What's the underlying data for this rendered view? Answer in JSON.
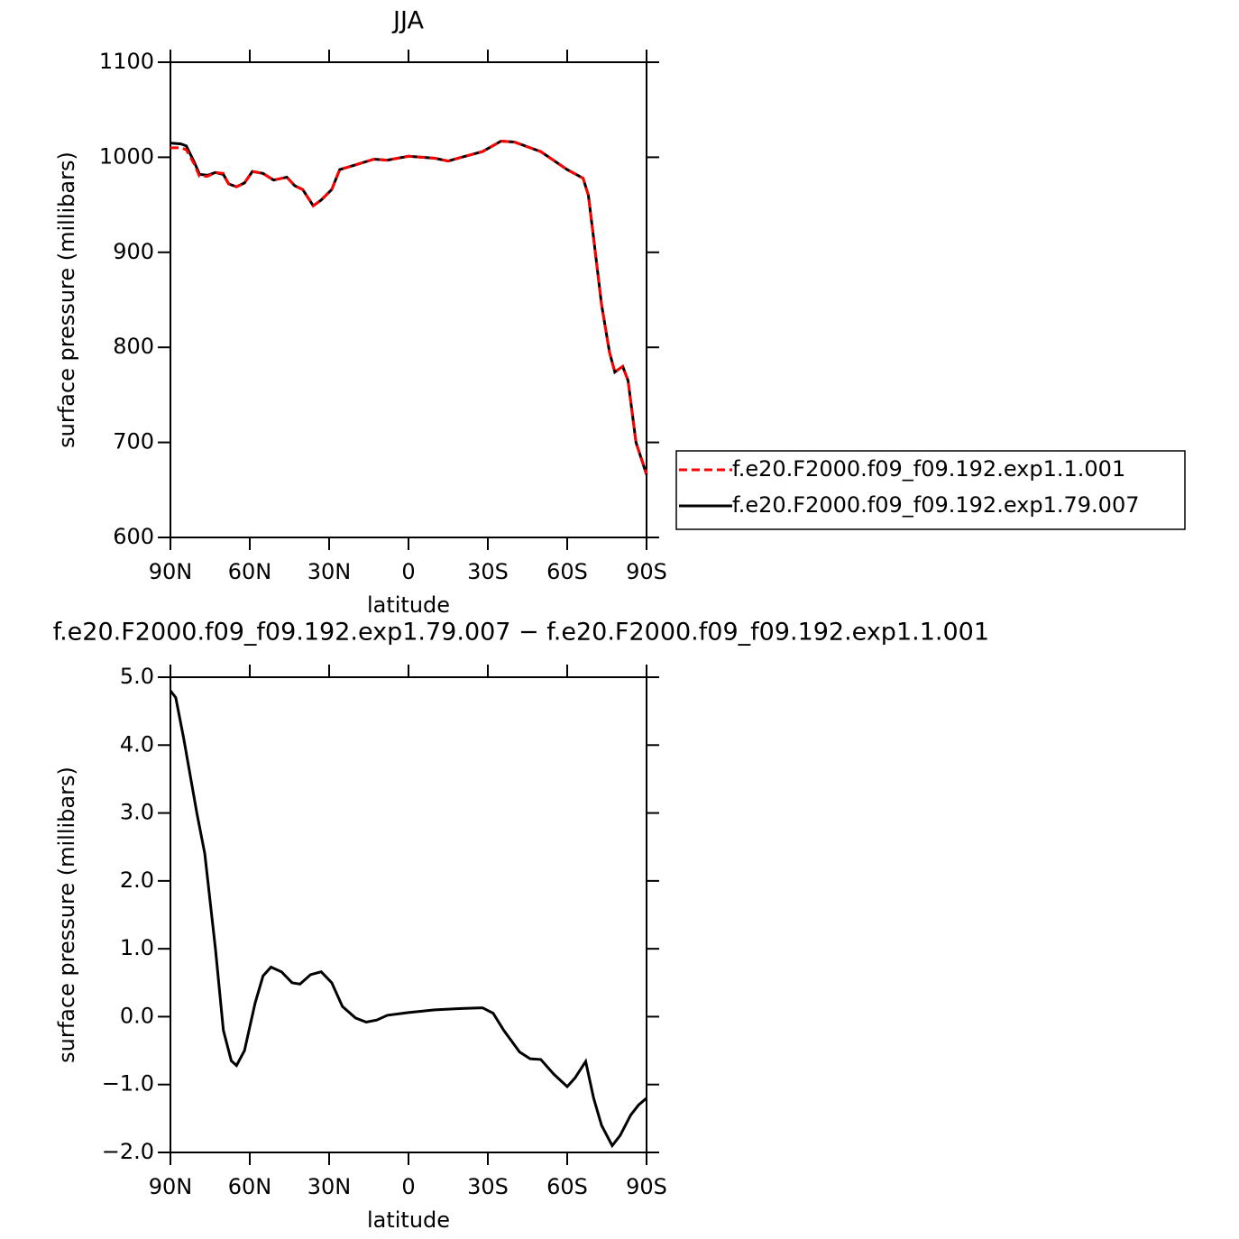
{
  "chart_data": [
    {
      "type": "line",
      "title": "JJA",
      "x_label": "latitude",
      "y_label": "surface pressure (millibars)",
      "x": [
        90,
        86,
        84,
        81,
        79,
        76,
        73,
        70,
        68,
        65,
        62,
        59,
        55,
        51,
        46,
        43,
        40,
        36,
        33,
        29,
        26,
        20,
        13,
        8,
        0,
        -10,
        -15,
        -20,
        -28,
        -35,
        -40,
        -50,
        -60,
        -66,
        -68,
        -70,
        -73,
        -76,
        -78,
        -81,
        -83,
        -86,
        -90
      ],
      "series": [
        {
          "name": "f.e20.F2000.f09_f09.192.exp1.1.001",
          "color": "#ff0000",
          "line_style": "dashed",
          "values": [
            1010,
            1010,
            1008,
            993,
            980,
            980,
            984,
            983,
            972,
            969,
            973,
            985,
            983,
            976,
            979,
            970,
            966,
            949,
            955,
            966,
            987,
            992,
            998,
            997,
            1001,
            999,
            996,
            1000,
            1006,
            1017,
            1016,
            1006,
            987,
            978,
            960,
            915,
            845,
            795,
            774,
            780,
            765,
            700,
            667
          ]
        },
        {
          "name": "f.e20.F2000.f09_f09.192.exp1.79.007",
          "color": "#000000",
          "line_style": "solid",
          "values": [
            1015,
            1014,
            1012,
            995,
            982,
            981,
            984,
            982,
            972,
            969,
            973,
            985,
            983,
            976,
            979,
            970,
            966,
            949,
            955,
            966,
            987,
            992,
            998,
            997,
            1001,
            999,
            996,
            1000,
            1006,
            1017,
            1016,
            1006,
            987,
            978,
            960,
            915,
            845,
            795,
            774,
            780,
            765,
            700,
            666
          ]
        }
      ],
      "xlim": [
        90,
        -90
      ],
      "ylim": [
        600,
        1100
      ],
      "xticks": [
        {
          "value": 90,
          "label": "90N"
        },
        {
          "value": 60,
          "label": "60N"
        },
        {
          "value": 30,
          "label": "30N"
        },
        0,
        {
          "value": -30,
          "label": "30S"
        },
        {
          "value": -60,
          "label": "60S"
        },
        {
          "value": -90,
          "label": "90S"
        }
      ],
      "yticks": [
        600,
        700,
        800,
        900,
        1000,
        1100
      ],
      "legend": "right"
    },
    {
      "type": "line",
      "title": "f.e20.F2000.f09_f09.192.exp1.79.007 − f.e20.F2000.f09_f09.192.exp1.1.001",
      "x_label": "latitude",
      "y_label": "surface pressure (millibars)",
      "x": [
        90,
        88,
        85,
        80,
        77,
        73,
        70,
        67,
        65,
        62,
        58,
        55,
        52,
        48,
        44,
        41,
        37,
        33,
        29,
        25,
        20,
        16,
        12,
        8,
        0,
        -10,
        -20,
        -28,
        -32,
        -36,
        -42,
        -46,
        -50,
        -55,
        -60,
        -63,
        -67,
        -70,
        -73,
        -77,
        -80,
        -84,
        -87,
        -90
      ],
      "values": [
        4.8,
        4.7,
        4.1,
        3.0,
        2.4,
        1.0,
        -0.2,
        -0.65,
        -0.72,
        -0.5,
        0.2,
        0.6,
        0.73,
        0.66,
        0.5,
        0.48,
        0.62,
        0.66,
        0.5,
        0.15,
        -0.02,
        -0.08,
        -0.05,
        0.02,
        0.06,
        0.1,
        0.12,
        0.13,
        0.05,
        -0.2,
        -0.52,
        -0.62,
        -0.63,
        -0.85,
        -1.03,
        -0.9,
        -0.66,
        -1.2,
        -1.6,
        -1.9,
        -1.75,
        -1.45,
        -1.3,
        -1.2
      ],
      "color": "#000000",
      "xlim": [
        90,
        -90
      ],
      "ylim": [
        -2,
        5
      ],
      "xticks": [
        {
          "value": 90,
          "label": "90N"
        },
        {
          "value": 60,
          "label": "60N"
        },
        {
          "value": 30,
          "label": "30N"
        },
        0,
        {
          "value": -30,
          "label": "30S"
        },
        {
          "value": -60,
          "label": "60S"
        },
        {
          "value": -90,
          "label": "90S"
        }
      ],
      "yticks": [
        {
          "value": -2,
          "label": "−2.0"
        },
        {
          "value": -1,
          "label": "−1.0"
        },
        {
          "value": 0,
          "label": "0.0"
        },
        {
          "value": 1,
          "label": "1.0"
        },
        {
          "value": 2,
          "label": "2.0"
        },
        {
          "value": 3,
          "label": "3.0"
        },
        {
          "value": 4,
          "label": "4.0"
        },
        {
          "value": 5,
          "label": "5.0"
        }
      ]
    }
  ]
}
